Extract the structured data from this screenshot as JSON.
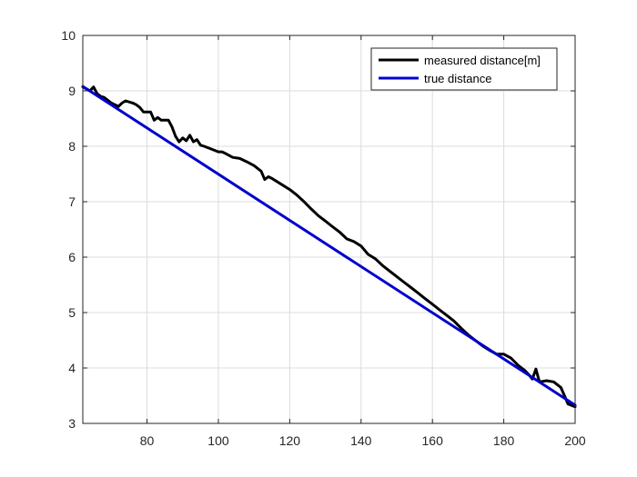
{
  "chart_data": {
    "type": "line",
    "title": "",
    "xlabel": "",
    "ylabel": "",
    "xlim": [
      62,
      200
    ],
    "ylim": [
      3,
      10
    ],
    "x_ticks": [
      80,
      100,
      120,
      140,
      160,
      180,
      200
    ],
    "y_ticks": [
      3,
      4,
      5,
      6,
      7,
      8,
      9,
      10
    ],
    "grid": true,
    "legend_location": "top-right",
    "series": [
      {
        "name": "measured distance[m]",
        "color": "#000000",
        "x": [
          62,
          64,
          65,
          66,
          67,
          68,
          70,
          71,
          72,
          73,
          74,
          76,
          77,
          78,
          79,
          80,
          81,
          82,
          83,
          84,
          86,
          87,
          88,
          89,
          90,
          91,
          92,
          93,
          94,
          95,
          96,
          98,
          100,
          101,
          102,
          104,
          106,
          108,
          110,
          112,
          113,
          114,
          115,
          116,
          118,
          120,
          122,
          124,
          126,
          128,
          130,
          132,
          134,
          136,
          138,
          140,
          142,
          144,
          146,
          148,
          150,
          152,
          154,
          156,
          158,
          160,
          162,
          164,
          166,
          168,
          170,
          172,
          174,
          176,
          178,
          180,
          182,
          184,
          186,
          187,
          188,
          189,
          190,
          192,
          194,
          196,
          198,
          200
        ],
        "values": [
          9.07,
          9.0,
          9.07,
          8.95,
          8.9,
          8.88,
          8.78,
          8.75,
          8.72,
          8.78,
          8.82,
          8.78,
          8.75,
          8.7,
          8.62,
          8.62,
          8.62,
          8.47,
          8.52,
          8.47,
          8.47,
          8.35,
          8.18,
          8.08,
          8.15,
          8.1,
          8.2,
          8.08,
          8.12,
          8.02,
          8.0,
          7.95,
          7.9,
          7.9,
          7.87,
          7.8,
          7.78,
          7.72,
          7.65,
          7.55,
          7.4,
          7.45,
          7.42,
          7.38,
          7.3,
          7.22,
          7.12,
          7.0,
          6.87,
          6.75,
          6.65,
          6.55,
          6.45,
          6.33,
          6.28,
          6.2,
          6.05,
          5.97,
          5.85,
          5.75,
          5.65,
          5.55,
          5.45,
          5.35,
          5.25,
          5.15,
          5.05,
          4.95,
          4.85,
          4.72,
          4.6,
          4.5,
          4.4,
          4.32,
          4.25,
          4.25,
          4.18,
          4.05,
          3.95,
          3.88,
          3.8,
          3.98,
          3.75,
          3.77,
          3.75,
          3.65,
          3.35,
          3.3
        ]
      },
      {
        "name": "true distance",
        "color": "#0000cd",
        "x": [
          62,
          200
        ],
        "values": [
          9.08,
          3.33
        ]
      }
    ]
  }
}
